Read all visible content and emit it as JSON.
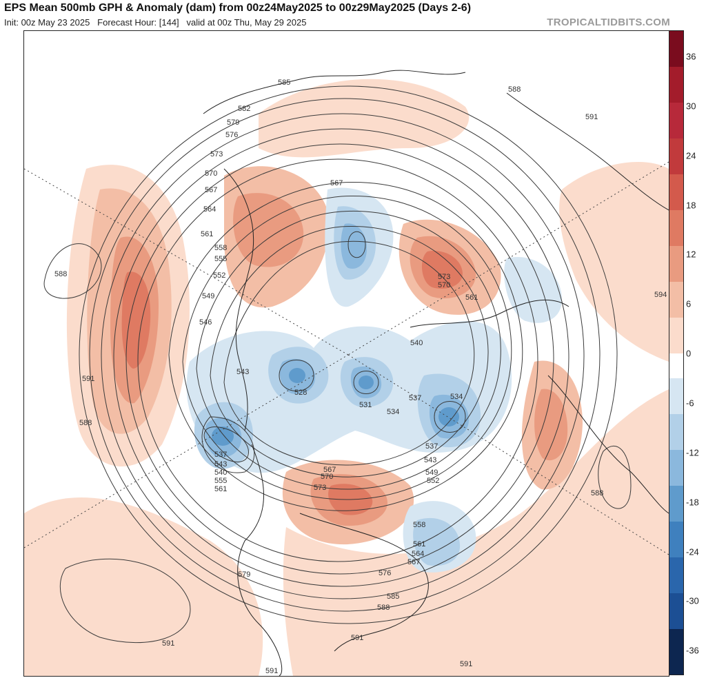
{
  "header": {
    "title": "EPS Mean 500mb GPH & Anomaly (dam) from 00z24May2025 to 00z29May2025 (Days 2-6)",
    "init": "Init: 00z May 23 2025",
    "forecast_hour": "Forecast Hour: [144]",
    "valid": "valid at 00z Thu, May 29 2025",
    "watermark": "TROPICALTIDBITS.COM"
  },
  "colorbar": {
    "ticks": [
      "36",
      "30",
      "24",
      "18",
      "12",
      "6",
      "0",
      "-6",
      "-12",
      "-18",
      "-24",
      "-30",
      "-36"
    ],
    "colors": [
      "#7a0c1e",
      "#a31c2b",
      "#c13a3c",
      "#d35a4c",
      "#df7a62",
      "#e99b80",
      "#f3bea6",
      "#fbdccc",
      "#ffffff",
      "#d6e6f2",
      "#b2d0e8",
      "#8bb8dd",
      "#5f9bcc",
      "#3f80be",
      "#2a66ac",
      "#1c4f94",
      "#153a73",
      "#0d2650"
    ]
  },
  "contour_labels": {
    "l585": "585",
    "l582": "582",
    "l579": "579",
    "l576": "576",
    "l573": "573",
    "l570": "570",
    "l567": "567",
    "l564": "564",
    "l561": "561",
    "l558": "558",
    "l555": "555",
    "l552": "552",
    "l549": "549",
    "l546": "546",
    "l543": "543",
    "l540": "540",
    "l537": "537",
    "l534": "534",
    "l531": "531",
    "l528": "528",
    "l588": "588",
    "l591": "591",
    "l594": "594"
  }
}
